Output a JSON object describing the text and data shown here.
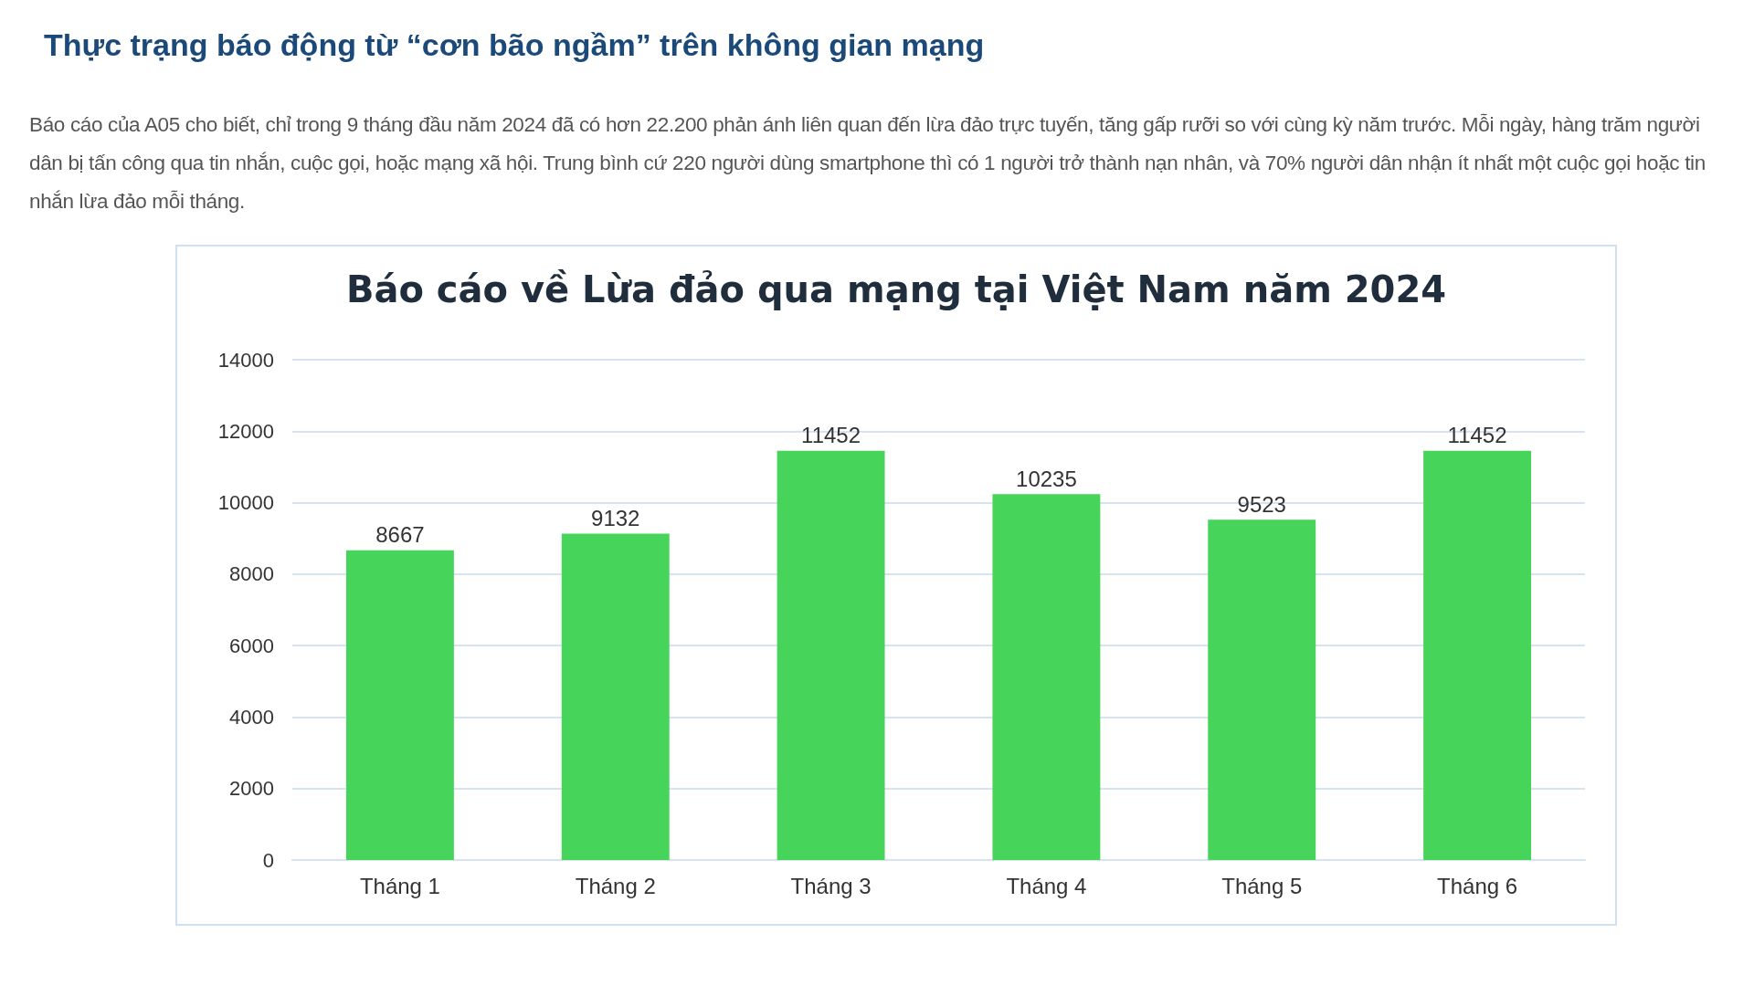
{
  "chart_data": {
    "type": "bar",
    "title": "Báo cáo về Lừa đảo qua mạng tại Việt Nam năm 2024",
    "annotations": [
      "Thực trạng báo động từ “cơn bão ngầm” trên không gian mạng",
      "Báo cáo của A05 cho biết, chỉ trong 9 tháng đầu năm 2024 đã có hơn 22.200 phản ánh liên quan đến lừa đảo trực tuyến, tăng gấp rưỡi so với cùng kỳ năm trước. Mỗi ngày, hàng trăm người dân bị tấn công qua tin nhắn, cuộc gọi, hoặc mạng xã hội. Trung bình cứ 220 người dùng smartphone thì có 1 người trở thành nạn nhân, và 70% người dân nhận ít nhất một cuộc gọi hoặc tin nhắn lừa đảo mỗi tháng."
    ],
    "categories": [
      "Tháng 1",
      "Tháng 2",
      "Tháng 3",
      "Tháng 4",
      "Tháng 5",
      "Tháng 6"
    ],
    "values": [
      8667,
      9132,
      11452,
      10235,
      9523,
      11452
    ],
    "color": "#46d45b",
    "ylim": [
      0,
      14000
    ],
    "yticks": [
      0,
      2000,
      4000,
      6000,
      8000,
      10000,
      12000,
      14000
    ],
    "grid": "y",
    "data_labels": true
  }
}
